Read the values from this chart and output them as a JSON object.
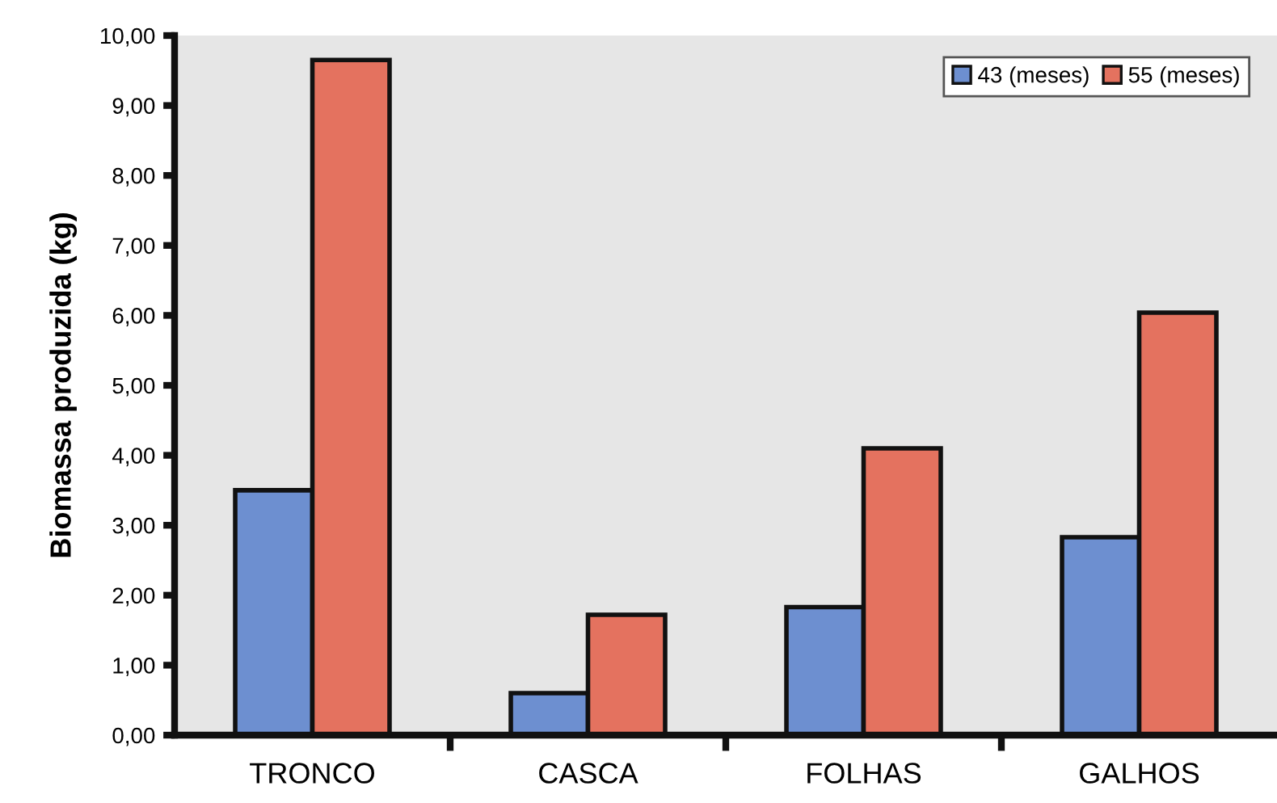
{
  "chart_data": {
    "type": "bar",
    "ylabel": "Biomassa produzida (kg)",
    "categories": [
      "TRONCO",
      "CASCA",
      "FOLHAS",
      "GALHOS"
    ],
    "series": [
      {
        "name": "43 (meses)",
        "color": "#6d8fd0",
        "values": [
          3.5,
          0.6,
          1.83,
          2.83
        ]
      },
      {
        "name": "55 (meses)",
        "color": "#e4725f",
        "values": [
          9.65,
          1.72,
          4.1,
          6.04
        ]
      }
    ],
    "ylim": [
      0,
      10
    ],
    "yticks": [
      {
        "value": 0,
        "label": "0,00"
      },
      {
        "value": 1,
        "label": "1,00"
      },
      {
        "value": 2,
        "label": "2,00"
      },
      {
        "value": 3,
        "label": "3,00"
      },
      {
        "value": 4,
        "label": "4,00"
      },
      {
        "value": 5,
        "label": "5,00"
      },
      {
        "value": 6,
        "label": "6,00"
      },
      {
        "value": 7,
        "label": "7,00"
      },
      {
        "value": 8,
        "label": "8,00"
      },
      {
        "value": 9,
        "label": "9,00"
      },
      {
        "value": 10,
        "label": "10,00"
      }
    ],
    "grid": false,
    "legend": "top right"
  }
}
